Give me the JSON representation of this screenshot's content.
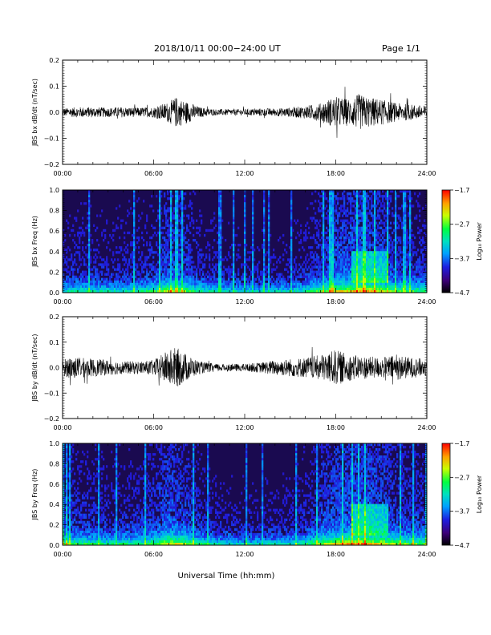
{
  "header": {
    "title": "2018/10/11  00:00−24:00 UT",
    "page": "Page 1/1"
  },
  "xaxis": {
    "label": "Universal Time (hh:mm)",
    "ticks": [
      "00:00",
      "06:00",
      "12:00",
      "18:00",
      "24:00"
    ],
    "range_hours": [
      0,
      24
    ]
  },
  "chart_data": [
    {
      "type": "line",
      "ylabel": "JBS bx dB/dt (nT/sec)",
      "ylim": [
        -0.2,
        0.2
      ],
      "yticks": [
        "0.2",
        "0.1",
        "0.0",
        "−0.1",
        "−0.2"
      ],
      "x_hours": [
        0,
        1,
        2,
        3,
        4,
        5,
        6,
        7,
        7.5,
        8,
        8.5,
        9,
        10,
        11,
        12,
        13,
        14,
        15,
        16,
        17,
        17.5,
        18,
        19,
        19.5,
        20,
        21,
        22,
        23,
        24
      ],
      "envelope": [
        0.015,
        0.02,
        0.02,
        0.018,
        0.02,
        0.018,
        0.02,
        0.04,
        0.06,
        0.045,
        0.035,
        0.02,
        0.012,
        0.012,
        0.012,
        0.015,
        0.015,
        0.018,
        0.025,
        0.035,
        0.05,
        0.06,
        0.05,
        0.07,
        0.06,
        0.05,
        0.035,
        0.03,
        0.025
      ]
    },
    {
      "type": "heatmap",
      "ylabel": "JBS bx Freq (Hz)",
      "ylim": [
        0.0,
        1.0
      ],
      "yticks": [
        "1.0",
        "0.8",
        "0.6",
        "0.4",
        "0.2",
        "0.0"
      ],
      "colorbar": {
        "label": "Log₁₀ Power",
        "ticks": [
          "−1.7",
          "−2.7",
          "−3.7",
          "−4.7"
        ],
        "range": [
          -4.7,
          -1.7
        ]
      }
    },
    {
      "type": "line",
      "ylabel": "JBS by dB/dt (nT/sec)",
      "ylim": [
        -0.2,
        0.2
      ],
      "yticks": [
        "0.2",
        "0.1",
        "0.0",
        "−0.1",
        "−0.2"
      ],
      "x_hours": [
        0,
        0.5,
        1,
        2,
        3,
        4,
        5,
        6,
        7,
        7.5,
        8,
        8.5,
        9,
        10,
        11,
        12,
        13,
        14,
        15,
        16,
        17,
        17.5,
        18,
        19,
        20,
        21,
        22,
        23,
        24
      ],
      "envelope": [
        0.03,
        0.045,
        0.04,
        0.035,
        0.03,
        0.025,
        0.025,
        0.03,
        0.07,
        0.08,
        0.06,
        0.04,
        0.025,
        0.015,
        0.015,
        0.015,
        0.02,
        0.03,
        0.035,
        0.04,
        0.05,
        0.06,
        0.07,
        0.05,
        0.045,
        0.04,
        0.05,
        0.04,
        0.035
      ]
    },
    {
      "type": "heatmap",
      "ylabel": "JBS by Freq (Hz)",
      "ylim": [
        0.0,
        1.0
      ],
      "yticks": [
        "1.0",
        "0.8",
        "0.6",
        "0.4",
        "0.2",
        "0.0"
      ],
      "colorbar": {
        "label": "Log₁₀ Power",
        "ticks": [
          "−1.7",
          "−2.7",
          "−3.7",
          "−4.7"
        ],
        "range": [
          -4.7,
          -1.7
        ]
      }
    }
  ]
}
